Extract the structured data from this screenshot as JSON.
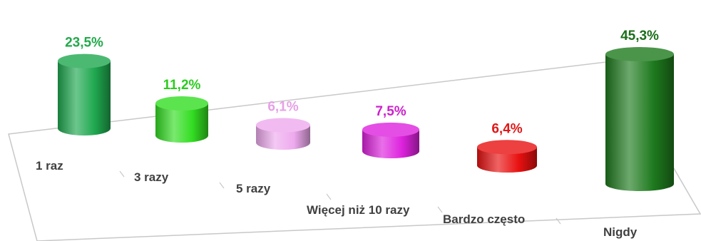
{
  "chart_data": {
    "type": "bar",
    "style": "3d-cylinder",
    "categories": [
      "1 raz",
      "3 razy",
      "5 razy",
      "Więcej niż 10 razy",
      "Bardzo często",
      "Nigdy"
    ],
    "values": [
      23.5,
      11.2,
      6.1,
      7.5,
      6.4,
      45.3
    ],
    "value_labels": [
      "23,5%",
      "11,2%",
      "6,1%",
      "7,5%",
      "6,4%",
      "45,3%"
    ],
    "colors": [
      "#1fa84f",
      "#33dd22",
      "#eeaaee",
      "#dd22dd",
      "#e81010",
      "#1e7a1e"
    ],
    "label_colors": [
      "#22aa4a",
      "#2ccc1f",
      "#e6a0e6",
      "#cc22cc",
      "#e01818",
      "#1a6e1a"
    ],
    "ylim": [
      0,
      45.3
    ],
    "grid": false,
    "legend": "none"
  }
}
